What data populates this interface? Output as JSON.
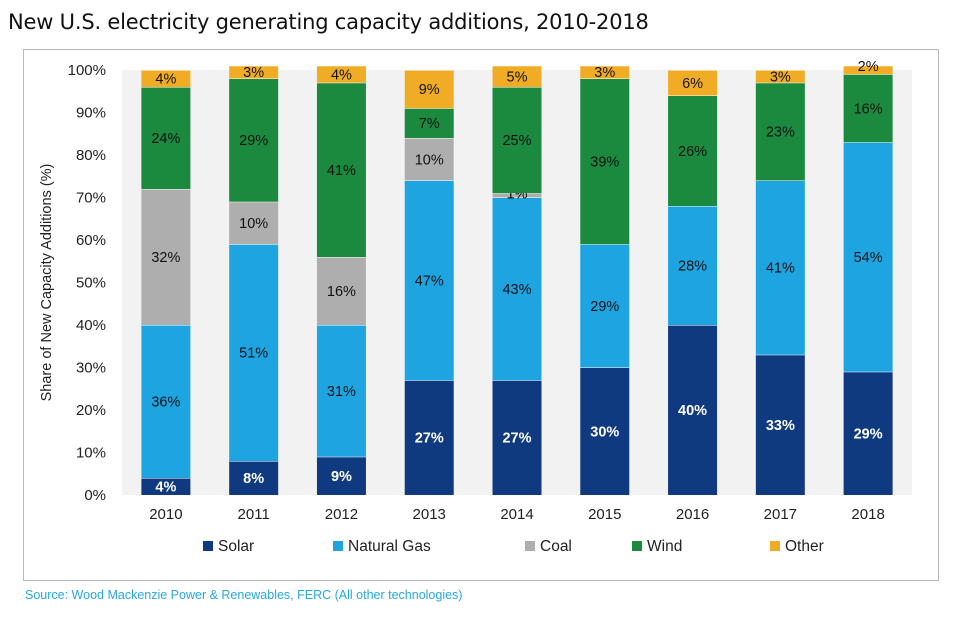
{
  "title": "New U.S. electricity generating capacity additions, 2010-2018",
  "source": "Source: Wood Mackenzie Power & Renewables, FERC (All other technologies)",
  "colors": {
    "Solar": "#103a7f",
    "Natural Gas": "#1fa4e2",
    "Coal": "#aeaeae",
    "Wind": "#1b8a3f",
    "Other": "#f1ac25"
  },
  "chart_data": {
    "type": "bar",
    "stacked": true,
    "categories": [
      "2010",
      "2011",
      "2012",
      "2013",
      "2014",
      "2015",
      "2016",
      "2017",
      "2018"
    ],
    "ylabel": "Share of New Capacity Additions (%)",
    "ylim": [
      0,
      100
    ],
    "yticks": [
      "0%",
      "10%",
      "20%",
      "30%",
      "40%",
      "50%",
      "60%",
      "70%",
      "80%",
      "90%",
      "100%"
    ],
    "legend_position": "bottom",
    "series": [
      {
        "name": "Solar",
        "values": [
          4,
          8,
          9,
          27,
          27,
          30,
          40,
          33,
          29
        ],
        "labels": [
          "4%",
          "8%",
          "9%",
          "27%",
          "27%",
          "30%",
          "40%",
          "33%",
          "29%"
        ]
      },
      {
        "name": "Natural Gas",
        "values": [
          36,
          51,
          31,
          47,
          43,
          29,
          28,
          41,
          54
        ],
        "labels": [
          "36%",
          "51%",
          "31%",
          "47%",
          "43%",
          "29%",
          "28%",
          "41%",
          "54%"
        ]
      },
      {
        "name": "Coal",
        "values": [
          32,
          10,
          16,
          10,
          1,
          0,
          0,
          0,
          0
        ],
        "labels": [
          "32%",
          "10%",
          "16%",
          "10%",
          "1%",
          "",
          "",
          "",
          ""
        ]
      },
      {
        "name": "Wind",
        "values": [
          24,
          29,
          41,
          7,
          25,
          39,
          26,
          23,
          16
        ],
        "labels": [
          "24%",
          "29%",
          "41%",
          "7%",
          "25%",
          "39%",
          "26%",
          "23%",
          "16%"
        ]
      },
      {
        "name": "Other",
        "values": [
          4,
          3,
          4,
          9,
          5,
          3,
          6,
          3,
          2
        ],
        "labels": [
          "4%",
          "3%",
          "4%",
          "9%",
          "5%",
          "3%",
          "6%",
          "3%",
          "2%"
        ]
      }
    ]
  }
}
